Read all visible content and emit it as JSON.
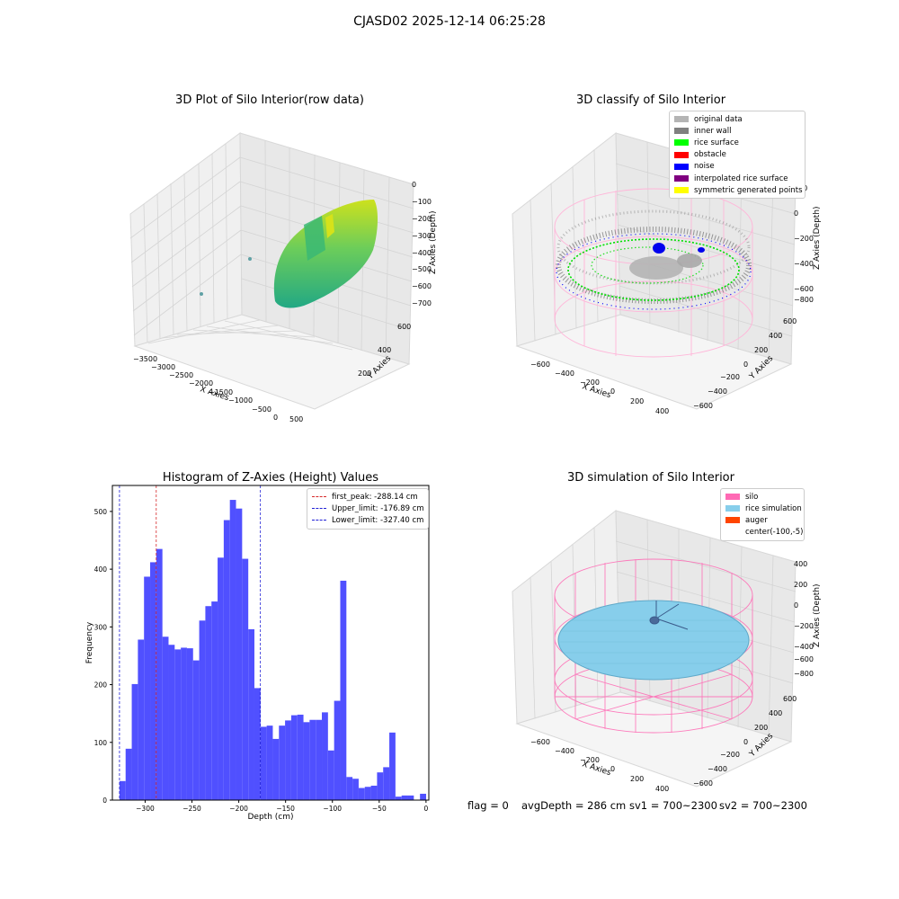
{
  "suptitle": "CJASD02 2025-12-14 06:25:28",
  "status": {
    "flag": "flag = 0",
    "avg_depth": "avgDepth = 286 cm",
    "sv1": "sv1 = 700~2300",
    "sv2": "sv2 = 700~2300"
  },
  "colors": {
    "hist_bar": "#5050ff",
    "first_peak": "#d62728",
    "limits": "#1f1fd6",
    "silo": "#ff69b4",
    "rice_simulation": "#87ceeb",
    "auger": "#ff4500"
  },
  "panel_raw": {
    "title": "3D Plot of Silo Interior(row data)",
    "xlabel": "X Axies",
    "ylabel": "Y Axies",
    "zlabel": "Z Axies (Depth)",
    "x_ticks": [
      "−3500",
      "−3000",
      "−2500",
      "−2000",
      "−1500",
      "−1000",
      "−500",
      "0",
      "500"
    ],
    "y_ticks": [
      "600",
      "400",
      "200",
      "0",
      "−200",
      "−400",
      "−600"
    ],
    "z_ticks": [
      "0",
      "−100",
      "−200",
      "−300",
      "−400",
      "−500",
      "−600",
      "−700"
    ]
  },
  "panel_classify": {
    "title": "3D classify of Silo Interior",
    "xlabel": "X Axies",
    "ylabel": "Y Axies",
    "zlabel": "Z Axies (Depth)",
    "x_ticks": [
      "−600",
      "−400",
      "−200",
      "0",
      "200",
      "400"
    ],
    "y_ticks": [
      "600",
      "400",
      "200",
      "0",
      "−200",
      "−400",
      "−600"
    ],
    "z_ticks": [
      "200",
      "0",
      "−200",
      "−400",
      "−600",
      "−800"
    ],
    "legend": [
      {
        "label": "original data",
        "color": "#b4b4b4"
      },
      {
        "label": "inner wall",
        "color": "#808080"
      },
      {
        "label": "rice surface",
        "color": "#00ff00"
      },
      {
        "label": "obstacle",
        "color": "#ff0000"
      },
      {
        "label": "noise",
        "color": "#0000ff"
      },
      {
        "label": "interpolated rice surface",
        "color": "#800080"
      },
      {
        "label": "symmetric generated points",
        "color": "#ffff00"
      }
    ]
  },
  "panel_sim": {
    "title": "3D simulation of Silo Interior",
    "xlabel": "X Axies",
    "ylabel": "Y Axies",
    "zlabel": "Z Axies (Depth)",
    "x_ticks": [
      "−600",
      "−400",
      "−200",
      "0",
      "200",
      "400"
    ],
    "y_ticks": [
      "600",
      "400",
      "200",
      "0",
      "−200",
      "−400",
      "−600"
    ],
    "z_ticks": [
      "400",
      "200",
      "0",
      "−200",
      "−400",
      "−600",
      "−800"
    ],
    "legend": [
      {
        "label": "silo",
        "color": "#ff69b4"
      },
      {
        "label": "rice simulation",
        "color": "#87ceeb"
      },
      {
        "label": "auger",
        "color": "#ff4500"
      },
      {
        "label": "center(-100,-5)",
        "color": ""
      }
    ]
  },
  "chart_data": {
    "type": "bar",
    "title": "Histogram of Z-Axies (Height) Values",
    "xlabel": "Depth (cm)",
    "ylabel": "Frequency",
    "xlim": [
      -335,
      3
    ],
    "ylim": [
      0,
      545
    ],
    "x_ticks": [
      -300,
      -250,
      -200,
      -150,
      -100,
      -50,
      0
    ],
    "x_tick_labels": [
      "−300",
      "−250",
      "−200",
      "−150",
      "−100",
      "−50",
      "0"
    ],
    "y_ticks": [
      0,
      100,
      200,
      300,
      400,
      500
    ],
    "y_tick_labels": [
      "0",
      "100",
      "200",
      "300",
      "400",
      "500"
    ],
    "bin_start": -327.4,
    "bin_width": 6.55,
    "counts": [
      33,
      89,
      201,
      278,
      387,
      412,
      435,
      283,
      269,
      261,
      264,
      263,
      242,
      311,
      336,
      344,
      420,
      485,
      520,
      505,
      418,
      296,
      194,
      127,
      129,
      106,
      129,
      138,
      147,
      148,
      135,
      139,
      139,
      152,
      86,
      172,
      380,
      40,
      37,
      21,
      23,
      25,
      48,
      57,
      117,
      6,
      8,
      8,
      0,
      11
    ],
    "lines": [
      {
        "name": "first_peak: -288.14 cm",
        "x": -288.14,
        "color": "#d62728"
      },
      {
        "name": "Upper_limit: -176.89 cm",
        "x": -176.89,
        "color": "#1f1fd6"
      },
      {
        "name": "Lower_limit: -327.40 cm",
        "x": -327.4,
        "color": "#1f1fd6"
      }
    ]
  }
}
